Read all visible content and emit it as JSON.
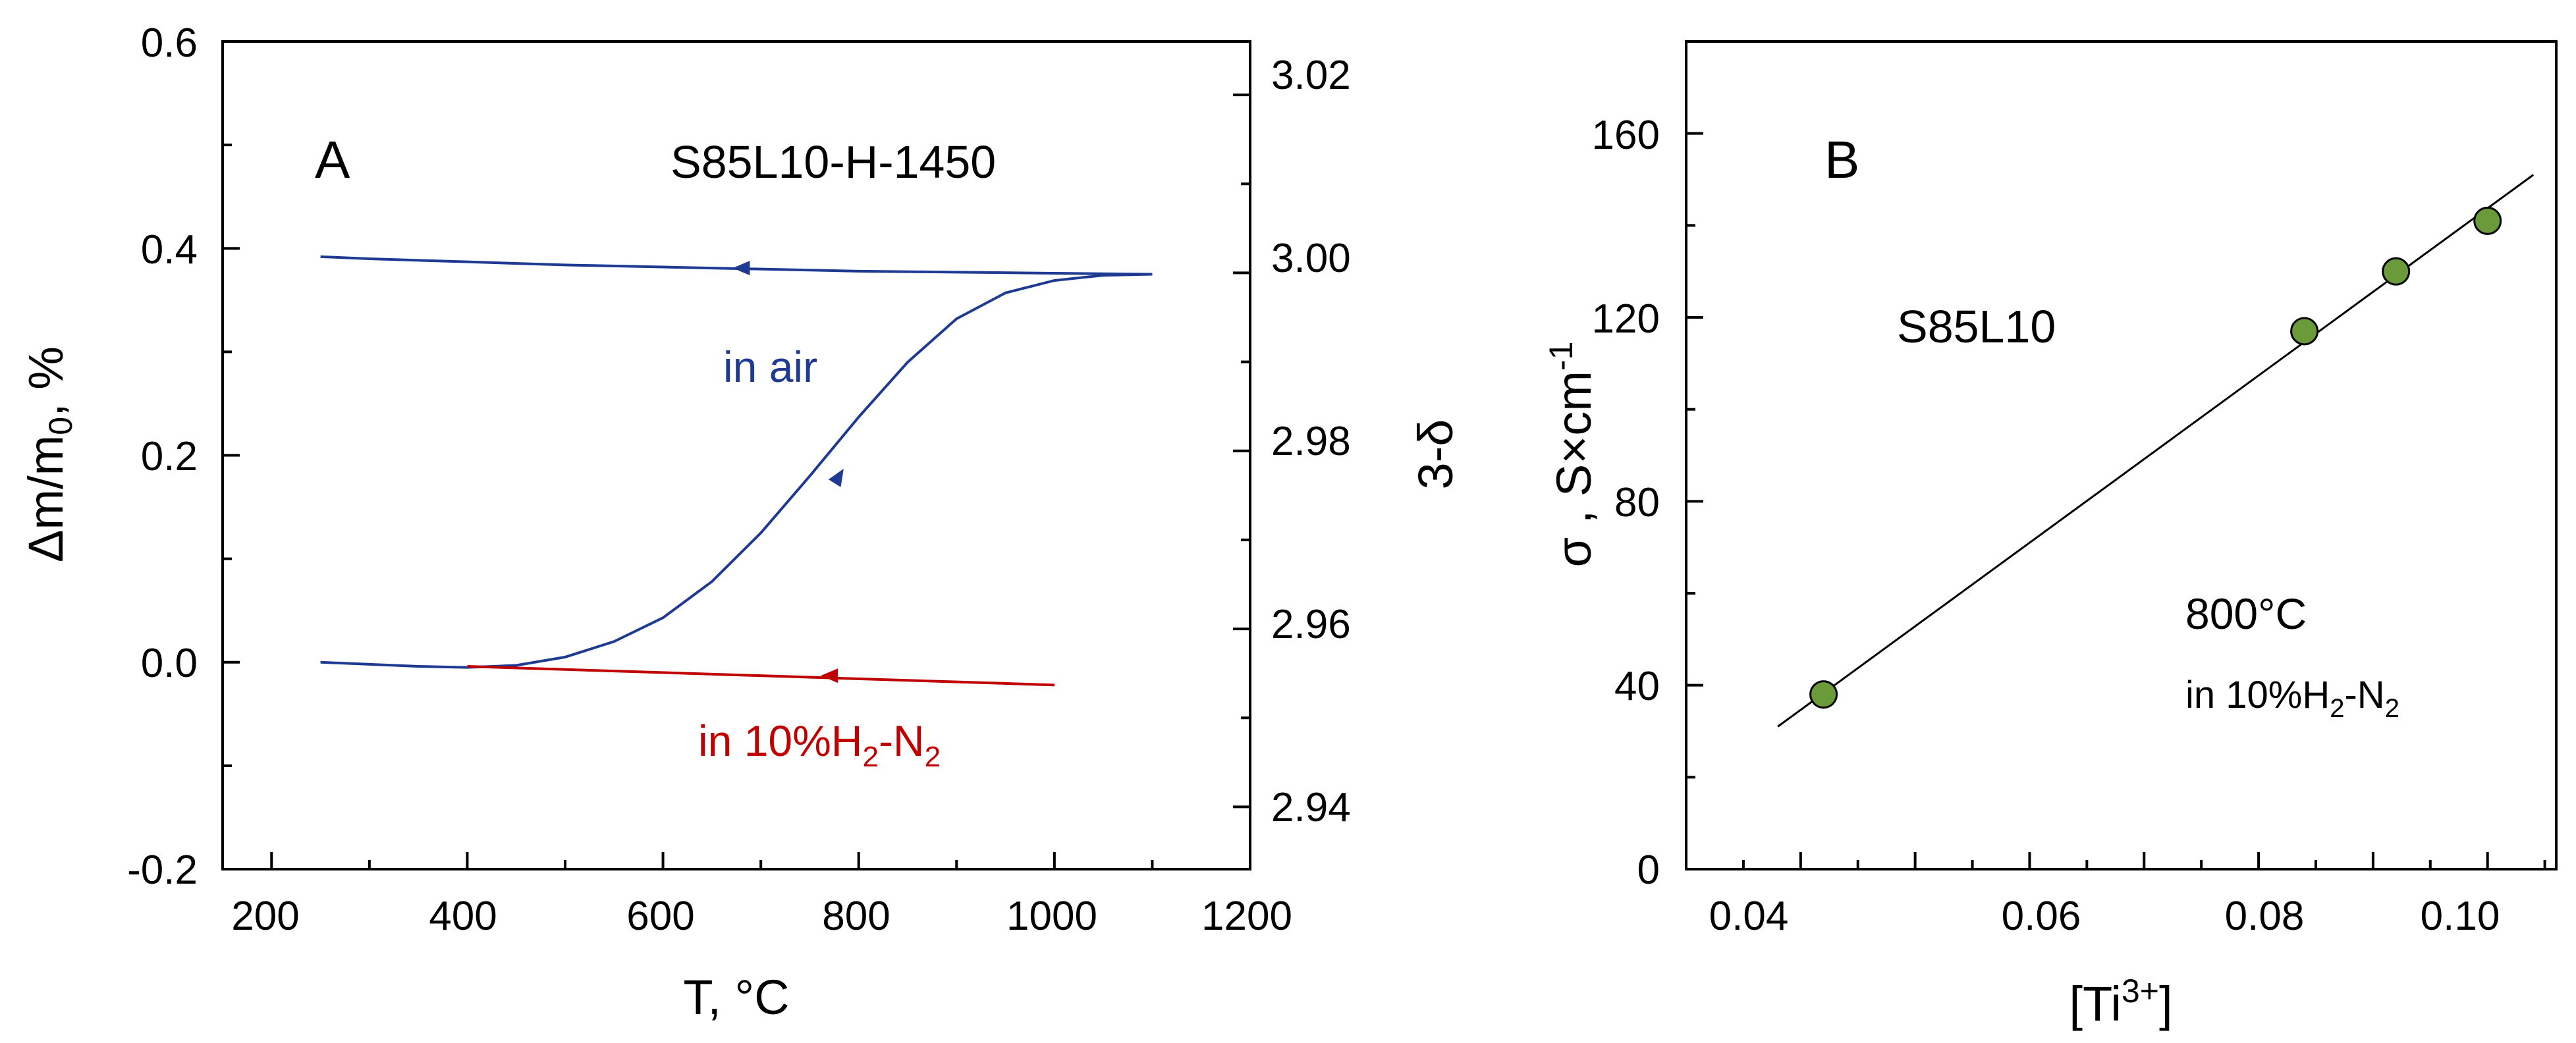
{
  "colors": {
    "air": "#1f3a93",
    "h2": "#c00000",
    "point": "#6a9a3a",
    "axis": "#000000"
  },
  "chart_data": [
    {
      "panel": "A",
      "type": "line",
      "sample": "S85L10-H-1450",
      "xlabel": "T, °C",
      "ylabel": {
        "main": "Δm/m",
        "sub": "0",
        "tail": ",  %"
      },
      "y2label": "3-δ",
      "xlim": [
        150,
        1200
      ],
      "ylim": [
        -0.2,
        0.6
      ],
      "y2lim": [
        2.933,
        3.026
      ],
      "xticks": [
        "200",
        "400",
        "600",
        "800",
        "1000",
        "1200"
      ],
      "yticks": [
        "-0.2",
        "0.0",
        "0.2",
        "0.4",
        "0.6"
      ],
      "y2ticks": [
        "2.94",
        "2.96",
        "2.98",
        "3.00",
        "3.02"
      ],
      "series": [
        {
          "name": "heating in air",
          "color": "#1f3a93",
          "x": [
            250,
            300,
            350,
            400,
            450,
            500,
            550,
            600,
            650,
            700,
            750,
            800,
            850,
            900,
            950,
            1000,
            1050,
            1100
          ],
          "y": [
            0.0,
            -0.002,
            -0.004,
            -0.005,
            -0.003,
            0.005,
            0.02,
            0.043,
            0.078,
            0.125,
            0.18,
            0.237,
            0.29,
            0.332,
            0.357,
            0.369,
            0.374,
            0.375
          ]
        },
        {
          "name": "cooling in air",
          "color": "#1f3a93",
          "x": [
            1100,
            1000,
            900,
            800,
            700,
            600,
            500,
            400,
            300,
            250
          ],
          "y": [
            0.375,
            0.376,
            0.377,
            0.378,
            0.38,
            0.382,
            0.384,
            0.387,
            0.39,
            0.392
          ]
        },
        {
          "name": "in 10%H2-N2",
          "color": "#c00000",
          "x": [
            400,
            1000
          ],
          "y": [
            -0.004,
            -0.022
          ]
        }
      ],
      "annotations": {
        "air": "in air",
        "h2_prefix": "in 10%H",
        "h2_sub1": "2",
        "h2_mid": "-N",
        "h2_sub2": "2"
      }
    },
    {
      "panel": "B",
      "type": "scatter",
      "sample": "S85L10",
      "xlabel": {
        "pre": "[Ti",
        "sup": "3+",
        "post": "]"
      },
      "ylabel": {
        "main": "σ , S×cm",
        "sup": "-1"
      },
      "xlim": [
        0.03,
        0.106
      ],
      "ylim": [
        0,
        180
      ],
      "xticks": [
        "0.04",
        "0.06",
        "0.08",
        "0.10"
      ],
      "yticks": [
        "0",
        "40",
        "80",
        "120",
        "160"
      ],
      "points": {
        "x": [
          0.042,
          0.084,
          0.092,
          0.1
        ],
        "y": [
          38,
          117,
          130,
          141
        ]
      },
      "fit": {
        "x": [
          0.038,
          0.104
        ],
        "y": [
          31,
          151
        ]
      },
      "annotations": {
        "temp": "800°C",
        "atm_prefix": "in 10%H",
        "atm_sub1": "2",
        "atm_mid": "-N",
        "atm_sub2": "2"
      }
    }
  ]
}
